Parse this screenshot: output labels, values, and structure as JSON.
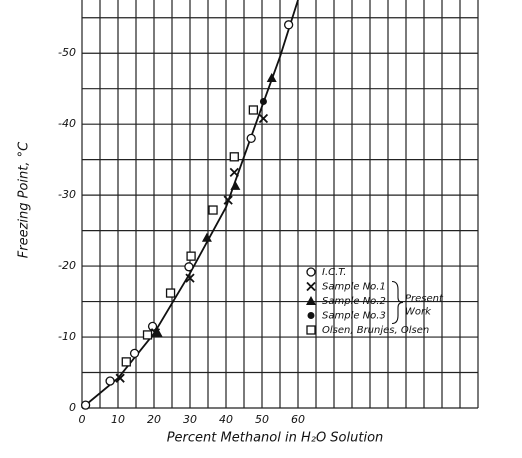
{
  "chart_data": {
    "type": "scatter",
    "x_label": "Percent Methanol in H₂O Solution",
    "y_label": "Freezing Point, °C",
    "xlim": [
      0,
      110
    ],
    "ylim": [
      0,
      -57.5
    ],
    "xticks": [
      0,
      10,
      20,
      30,
      40,
      50,
      60
    ],
    "yticks": [
      0,
      -10,
      -20,
      -30,
      -40,
      -50
    ],
    "xgrid": [
      0,
      5,
      10,
      15,
      20,
      25,
      30,
      35,
      40,
      45,
      50,
      55,
      60,
      65,
      70,
      75,
      80,
      85,
      90,
      95,
      100,
      105,
      110
    ],
    "ygrid": [
      0,
      -5,
      -10,
      -15,
      -20,
      -25,
      -30,
      -35,
      -40,
      -45,
      -50,
      -55
    ],
    "grid": true,
    "curve": {
      "color": "#111",
      "x": [
        0,
        10,
        20,
        30,
        40,
        50,
        55,
        60
      ],
      "values": [
        0,
        -4.2,
        -10.5,
        -19,
        -28.3,
        -42.5,
        -49.5,
        -57.5
      ]
    },
    "series": [
      {
        "name": "I.C.T.",
        "marker": "circle",
        "color": "#111",
        "x": [
          1,
          7.8,
          14.6,
          19.6,
          29.7,
          47,
          57.4
        ],
        "values": [
          -0.4,
          -3.8,
          -7.7,
          -11.5,
          -19.9,
          -38,
          -54
        ]
      },
      {
        "name": "Sample No.1",
        "marker": "x",
        "color": "#111",
        "x": [
          10.6,
          20.4,
          30,
          40.6,
          42.3,
          50.4
        ],
        "values": [
          -4.2,
          -10.6,
          -18.3,
          -29.3,
          -33.2,
          -40.8
        ]
      },
      {
        "name": "Sample No.2",
        "marker": "triangle",
        "color": "#111",
        "x": [
          21,
          34.7,
          42.6,
          52.7
        ],
        "values": [
          -10.6,
          -24,
          -31.3,
          -46.5
        ]
      },
      {
        "name": "Sample No.3",
        "marker": "dot",
        "color": "#111",
        "x": [
          50.4
        ],
        "values": [
          -43.2
        ]
      },
      {
        "name": "Olsen, Brunjes, Olsen",
        "marker": "square",
        "color": "#111",
        "x": [
          12.3,
          18.2,
          24.6,
          30.3,
          36.4,
          42.3,
          47.6
        ],
        "values": [
          -6.5,
          -10.3,
          -16.2,
          -21.4,
          -27.9,
          -35.4,
          -42
        ]
      }
    ],
    "annotation": [
      "Present",
      "Work"
    ]
  }
}
